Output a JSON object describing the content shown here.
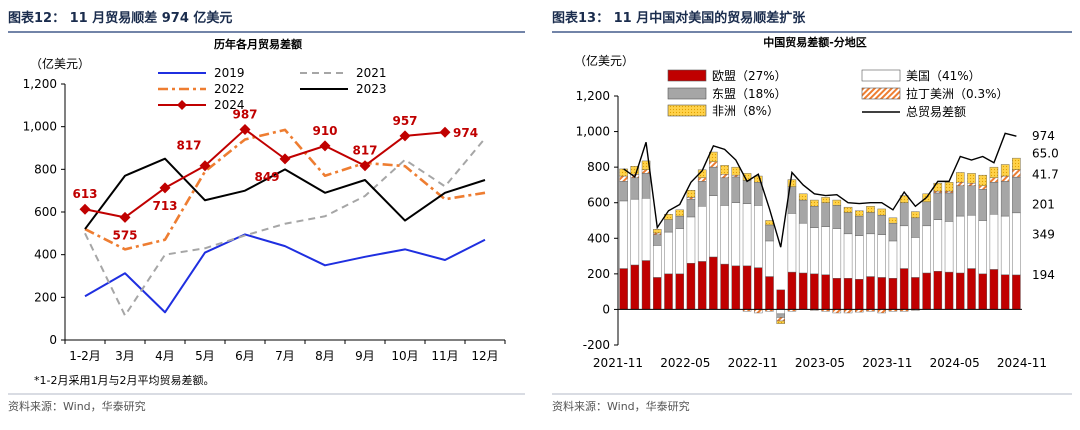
{
  "colors": {
    "title_blue": "#1a2c4d",
    "divider": "#1f3b73",
    "s2019": "#1f2fe0",
    "s2021": "#a6a6a6",
    "s2022": "#ee7d31",
    "s2023": "#000000",
    "s2024": "#c00000",
    "eu": "#c00000",
    "us": "#ffffff",
    "asean": "#a6a6a6",
    "latam": "#ee7d31",
    "africa": "#ffd24a",
    "total": "#000000"
  },
  "left": {
    "panel_title": "图表12：  11 月贸易顺差 974 亿美元",
    "unit": "（亿美元）",
    "note": "*1-2月采用1月与2月平均贸易差额。",
    "source": "资料来源：Wind，华泰研究",
    "chart_data": {
      "type": "line",
      "title": "历年各月贸易差额",
      "categories": [
        "1-2月",
        "3月",
        "4月",
        "5月",
        "6月",
        "7月",
        "8月",
        "9月",
        "10月",
        "11月",
        "12月"
      ],
      "ylim": [
        0,
        1200
      ],
      "yticks": [
        "0",
        "200",
        "400",
        "600",
        "800",
        "1,000",
        "1,200"
      ],
      "legend_position": "top",
      "series": [
        {
          "name": "2019",
          "color": "#1f2fe0",
          "values": [
            205,
            313,
            130,
            410,
            495,
            440,
            350,
            390,
            425,
            375,
            470
          ]
        },
        {
          "name": "2021",
          "color": "#a6a6a6",
          "dash": "dash",
          "values": [
            500,
            115,
            400,
            430,
            490,
            545,
            580,
            675,
            845,
            720,
            945
          ]
        },
        {
          "name": "2022",
          "color": "#ee7d31",
          "dash": "dashdot",
          "values": [
            520,
            425,
            470,
            790,
            940,
            985,
            770,
            830,
            815,
            660,
            690
          ]
        },
        {
          "name": "2023",
          "color": "#000000",
          "values": [
            520,
            770,
            850,
            655,
            700,
            800,
            690,
            750,
            560,
            690,
            750
          ]
        },
        {
          "name": "2024",
          "color": "#c00000",
          "marker": "diamond",
          "values": [
            613,
            575,
            713,
            817,
            987,
            849,
            910,
            817,
            957,
            974,
            null
          ]
        }
      ],
      "data_labels": [
        {
          "category_index": 0,
          "text": "613",
          "position": "above"
        },
        {
          "category_index": 1,
          "text": "575",
          "position": "below"
        },
        {
          "category_index": 2,
          "text": "713",
          "position": "below"
        },
        {
          "category_index": 3,
          "text": "817",
          "position": "above-left"
        },
        {
          "category_index": 4,
          "text": "987",
          "position": "above"
        },
        {
          "category_index": 5,
          "text": "849",
          "position": "below-left"
        },
        {
          "category_index": 6,
          "text": "910",
          "position": "above"
        },
        {
          "category_index": 7,
          "text": "817",
          "position": "above"
        },
        {
          "category_index": 8,
          "text": "957",
          "position": "above"
        },
        {
          "category_index": 9,
          "text": "974",
          "position": "right"
        }
      ]
    }
  },
  "right": {
    "panel_title": "图表13：  11 月中国对美国的贸易顺差扩张",
    "unit": "（亿美元）",
    "source": "资料来源：Wind，华泰研究",
    "chart_data": {
      "type": "bar",
      "stacked": true,
      "title": "中国贸易差额-分地区",
      "ylim": [
        -200,
        1200
      ],
      "yticks": [
        "-200",
        "0",
        "200",
        "400",
        "600",
        "800",
        "1,000",
        "1,200"
      ],
      "x_tick_labels": [
        "2021-11",
        "2022-05",
        "2022-11",
        "2023-05",
        "2023-11",
        "2024-05",
        "2024-11"
      ],
      "x_start": "2021-11",
      "legend_position": "top",
      "series": [
        {
          "name": "欧盟（27%）",
          "key": "eu",
          "color": "#c00000",
          "values": [
            230,
            250,
            275,
            180,
            200,
            200,
            260,
            270,
            295,
            255,
            245,
            245,
            235,
            185,
            110,
            210,
            205,
            200,
            195,
            175,
            175,
            170,
            185,
            180,
            175,
            230,
            180,
            205,
            215,
            210,
            205,
            230,
            200,
            225,
            195,
            194
          ]
        },
        {
          "name": "美国（41%）",
          "key": "us",
          "color": "#ffffff",
          "values": [
            380,
            370,
            350,
            180,
            235,
            255,
            260,
            310,
            345,
            330,
            355,
            350,
            350,
            200,
            -25,
            330,
            280,
            260,
            270,
            280,
            250,
            245,
            240,
            240,
            210,
            240,
            225,
            265,
            290,
            285,
            320,
            300,
            300,
            310,
            330,
            349
          ]
        },
        {
          "name": "东盟（18%）",
          "key": "asean",
          "color": "#a6a6a6",
          "values": [
            110,
            120,
            140,
            60,
            70,
            70,
            100,
            140,
            160,
            155,
            145,
            130,
            130,
            90,
            -20,
            150,
            130,
            120,
            135,
            130,
            120,
            110,
            120,
            110,
            100,
            130,
            110,
            135,
            150,
            160,
            170,
            165,
            175,
            180,
            195,
            201
          ]
        },
        {
          "name": "拉丁美洲（0.3%）",
          "key": "latam",
          "color": "#ee7d31",
          "values": [
            30,
            20,
            20,
            10,
            0,
            0,
            10,
            20,
            30,
            20,
            10,
            -10,
            -20,
            -10,
            -20,
            -10,
            0,
            -5,
            -10,
            -20,
            -20,
            -15,
            -10,
            -20,
            -10,
            -10,
            -5,
            0,
            10,
            10,
            20,
            15,
            20,
            25,
            30,
            41.7
          ]
        },
        {
          "name": "非洲（8%）",
          "key": "africa",
          "color": "#ffd24a",
          "values": [
            40,
            45,
            50,
            20,
            30,
            35,
            40,
            45,
            55,
            50,
            45,
            40,
            35,
            25,
            -15,
            40,
            35,
            35,
            30,
            30,
            30,
            30,
            35,
            35,
            30,
            40,
            35,
            45,
            45,
            50,
            55,
            55,
            60,
            60,
            65,
            65.0
          ]
        }
      ],
      "total": {
        "name": "总贸易差额",
        "values": [
          790,
          745,
          940,
          460,
          555,
          590,
          715,
          780,
          920,
          900,
          840,
          720,
          760,
          565,
          350,
          770,
          700,
          650,
          640,
          645,
          600,
          595,
          600,
          600,
          560,
          660,
          580,
          630,
          720,
          720,
          860,
          840,
          860,
          825,
          990,
          974
        ]
      },
      "right_labels": [
        {
          "text": "974",
          "value": 974,
          "color": "#000000"
        },
        {
          "text": "65.0",
          "value": 876,
          "color": "#ffc000"
        },
        {
          "text": "41.7",
          "value": 758,
          "color": "#c00000"
        },
        {
          "text": "201",
          "value": 590,
          "color": "#555555"
        },
        {
          "text": "349",
          "value": 420,
          "color": "#000000"
        },
        {
          "text": "194",
          "value": 194,
          "color": "#c00000"
        }
      ]
    }
  }
}
